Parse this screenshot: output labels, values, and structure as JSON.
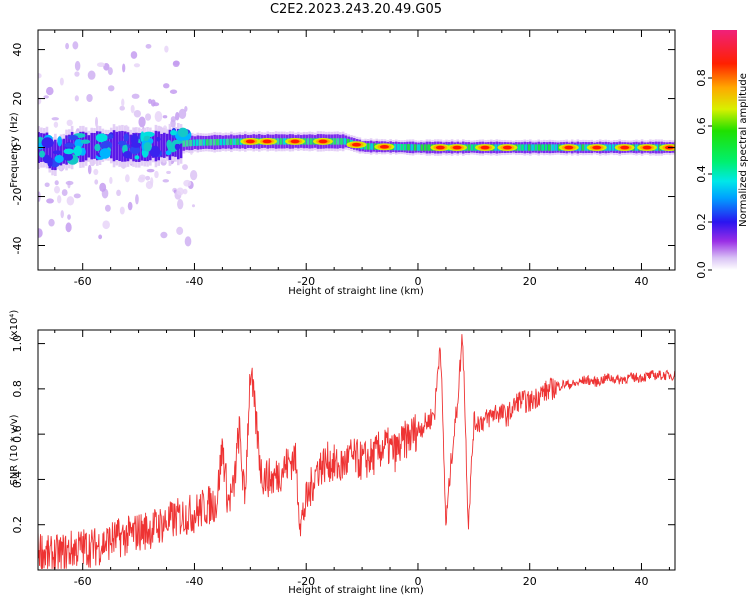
{
  "figure_title": "C2E2.2023.243.20.49.G05",
  "chart_data": [
    {
      "type": "heatmap",
      "title": "C2E2.2023.243.20.49.G05",
      "xlabel": "Height of straight line (km)",
      "ylabel": "Frequency (Hz)",
      "xlim": [
        -68,
        46
      ],
      "ylim": [
        -50,
        48
      ],
      "x_ticks": [
        -60,
        -40,
        -20,
        0,
        20,
        40
      ],
      "y_ticks": [
        -40,
        -20,
        0,
        20,
        40
      ],
      "colorbar": {
        "label": "Normalized spectral amplitude",
        "range": [
          0.0,
          1.0
        ],
        "ticks": [
          "0.0",
          "0.2",
          "0.4",
          "0.6",
          "0.8"
        ],
        "colormap": "rainbow (white, purple, blue, cyan, green, yellow, orange, red, magenta)"
      },
      "ridge_description": "Spectral energy concentrated near 0 Hz; broad and noisy for heights below -40 km, narrowing to a thin band at about +2 Hz between -40 and -12 km, then centered near 0 Hz from -12 to 46 km with peak amplitude (red) at discrete points.",
      "ridge_center": [
        {
          "x": -66,
          "y": -4
        },
        {
          "x": -62,
          "y": 0
        },
        {
          "x": -56,
          "y": 1
        },
        {
          "x": -50,
          "y": 0
        },
        {
          "x": -45,
          "y": 1
        },
        {
          "x": -40,
          "y": 2
        },
        {
          "x": -30,
          "y": 2.5
        },
        {
          "x": -20,
          "y": 2.5
        },
        {
          "x": -13,
          "y": 2.5
        },
        {
          "x": -10,
          "y": 0.5
        },
        {
          "x": 0,
          "y": 0
        },
        {
          "x": 10,
          "y": 0
        },
        {
          "x": 20,
          "y": 0
        },
        {
          "x": 30,
          "y": 0
        },
        {
          "x": 40,
          "y": 0
        },
        {
          "x": 46,
          "y": 0
        }
      ],
      "red_peaks_x": [
        -30,
        -27,
        -22,
        -17,
        -11,
        -6,
        4,
        7,
        12,
        16,
        27,
        32,
        37,
        41,
        45
      ]
    },
    {
      "type": "line",
      "xlabel": "Height of straight line (km)",
      "ylabel": "SNR (10 * v/v)",
      "y_multiplier": "(x10⁴)",
      "xlim": [
        -68,
        46
      ],
      "ylim": [
        0,
        1.06
      ],
      "x_ticks": [
        -60,
        -40,
        -20,
        0,
        20,
        40
      ],
      "y_ticks": [
        "0.2",
        "0.4",
        "0.6",
        "0.8",
        "1.0"
      ],
      "line_color": "#ee3333",
      "series": [
        {
          "values_x": [
            -68,
            -66,
            -64,
            -62,
            -60,
            -58,
            -56,
            -54,
            -52,
            -50,
            -48,
            -46,
            -44,
            -42,
            -40,
            -38,
            -36,
            -35,
            -34,
            -33,
            -32,
            -31,
            -30,
            -28,
            -26,
            -24,
            -22,
            -21,
            -20,
            -18,
            -16,
            -14,
            -12,
            -10,
            -8,
            -6,
            -4,
            -2,
            0,
            2,
            3,
            4,
            5,
            6,
            7,
            8,
            9,
            10,
            12,
            14,
            16,
            18,
            20,
            22,
            24,
            26,
            28,
            30,
            32,
            34,
            36,
            38,
            40,
            42,
            44,
            46
          ],
          "values_y": [
            0.1,
            0.06,
            0.07,
            0.09,
            0.1,
            0.1,
            0.12,
            0.14,
            0.15,
            0.17,
            0.18,
            0.2,
            0.22,
            0.24,
            0.25,
            0.28,
            0.3,
            0.55,
            0.3,
            0.35,
            0.62,
            0.3,
            0.89,
            0.42,
            0.4,
            0.45,
            0.5,
            0.2,
            0.3,
            0.45,
            0.48,
            0.45,
            0.5,
            0.48,
            0.5,
            0.55,
            0.52,
            0.58,
            0.62,
            0.66,
            0.7,
            1.02,
            0.2,
            0.5,
            0.72,
            1.05,
            0.2,
            0.65,
            0.66,
            0.7,
            0.68,
            0.75,
            0.74,
            0.78,
            0.8,
            0.82,
            0.82,
            0.84,
            0.83,
            0.85,
            0.84,
            0.85,
            0.85,
            0.86,
            0.86,
            0.86
          ]
        }
      ]
    }
  ]
}
